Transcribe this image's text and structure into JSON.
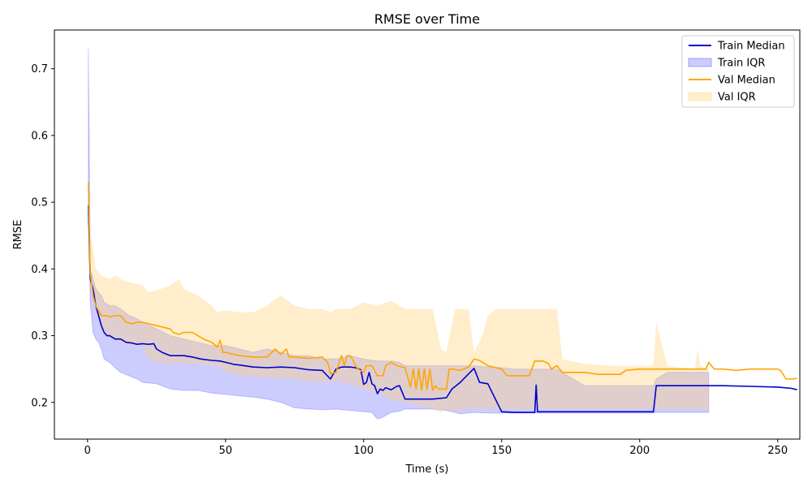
{
  "chart_data": {
    "type": "line",
    "title": "RMSE over Time",
    "xlabel": "Time (s)",
    "ylabel": "RMSE",
    "xlim": [
      -12,
      258
    ],
    "ylim": [
      0.145,
      0.758
    ],
    "xticks": [
      0,
      50,
      100,
      150,
      200,
      250
    ],
    "yticks": [
      0.2,
      0.3,
      0.4,
      0.5,
      0.6,
      0.7
    ],
    "grid": false,
    "legend_position": "top-right",
    "colors": {
      "train_line": "#0000cc",
      "train_fill": "#0000ff",
      "val_line": "#ffa500",
      "val_fill": "#ffd27f"
    },
    "series": [
      {
        "name": "Train Median",
        "kind": "line",
        "x": [
          0.3,
          1,
          2,
          3,
          4,
          5,
          6,
          7,
          8,
          10,
          12,
          14,
          16,
          18,
          20,
          22,
          24,
          25,
          27,
          30,
          33,
          35,
          38,
          41,
          45,
          48,
          50,
          53,
          55,
          60,
          65,
          70,
          75,
          80,
          85,
          88,
          90,
          92,
          95,
          97,
          99,
          100,
          101,
          102,
          103,
          104,
          105,
          106,
          107,
          108,
          110,
          112,
          113,
          115,
          116,
          120,
          125,
          130,
          132,
          135,
          140,
          142,
          145,
          150,
          155,
          160,
          162,
          162.5,
          163,
          165,
          170,
          175,
          180,
          190,
          200,
          205,
          206,
          210,
          220,
          230,
          240,
          250,
          255,
          257
        ],
        "y": [
          0.495,
          0.385,
          0.37,
          0.345,
          0.33,
          0.315,
          0.305,
          0.3,
          0.3,
          0.295,
          0.295,
          0.29,
          0.289,
          0.287,
          0.288,
          0.287,
          0.288,
          0.28,
          0.275,
          0.27,
          0.27,
          0.27,
          0.268,
          0.265,
          0.263,
          0.262,
          0.26,
          0.257,
          0.256,
          0.253,
          0.252,
          0.253,
          0.252,
          0.249,
          0.248,
          0.235,
          0.25,
          0.253,
          0.253,
          0.252,
          0.249,
          0.227,
          0.23,
          0.245,
          0.228,
          0.225,
          0.213,
          0.22,
          0.218,
          0.222,
          0.219,
          0.224,
          0.225,
          0.205,
          0.205,
          0.205,
          0.205,
          0.207,
          0.22,
          0.23,
          0.251,
          0.23,
          0.228,
          0.186,
          0.185,
          0.185,
          0.185,
          0.226,
          0.186,
          0.186,
          0.186,
          0.186,
          0.186,
          0.186,
          0.186,
          0.186,
          0.225,
          0.225,
          0.225,
          0.225,
          0.224,
          0.223,
          0.221,
          0.219
        ]
      },
      {
        "name": "Train IQR",
        "kind": "band",
        "x": [
          0.3,
          1,
          2,
          3,
          4,
          5,
          6,
          8,
          10,
          12,
          15,
          18,
          20,
          25,
          30,
          35,
          40,
          45,
          50,
          55,
          60,
          65,
          70,
          75,
          80,
          85,
          90,
          95,
          100,
          103,
          105,
          107,
          110,
          113,
          115,
          120,
          125,
          130,
          135,
          140,
          145,
          150,
          155,
          160,
          165,
          170,
          180,
          190,
          200,
          205,
          206,
          210,
          220,
          225
        ],
        "low": [
          0.5,
          0.35,
          0.305,
          0.295,
          0.29,
          0.28,
          0.265,
          0.26,
          0.252,
          0.245,
          0.24,
          0.235,
          0.23,
          0.228,
          0.22,
          0.218,
          0.218,
          0.214,
          0.212,
          0.21,
          0.208,
          0.205,
          0.2,
          0.192,
          0.19,
          0.189,
          0.19,
          0.188,
          0.186,
          0.185,
          0.175,
          0.178,
          0.185,
          0.187,
          0.19,
          0.19,
          0.19,
          0.188,
          0.183,
          0.185,
          0.184,
          0.184,
          0.184,
          0.184,
          0.184,
          0.184,
          0.184,
          0.184,
          0.184,
          0.184,
          0.185,
          0.185,
          0.185,
          0.185
        ],
        "high": [
          0.73,
          0.4,
          0.385,
          0.37,
          0.365,
          0.36,
          0.35,
          0.345,
          0.345,
          0.34,
          0.33,
          0.325,
          0.32,
          0.31,
          0.3,
          0.295,
          0.29,
          0.285,
          0.285,
          0.28,
          0.275,
          0.28,
          0.275,
          0.27,
          0.27,
          0.265,
          0.265,
          0.27,
          0.265,
          0.263,
          0.262,
          0.262,
          0.262,
          0.26,
          0.255,
          0.255,
          0.255,
          0.255,
          0.255,
          0.255,
          0.253,
          0.252,
          0.25,
          0.25,
          0.25,
          0.25,
          0.225,
          0.225,
          0.225,
          0.225,
          0.235,
          0.245,
          0.245,
          0.245
        ]
      },
      {
        "name": "Val Median",
        "kind": "line",
        "x": [
          0.3,
          1,
          2,
          3,
          5,
          7,
          8,
          10,
          12,
          14,
          16,
          18,
          20,
          25,
          30,
          31,
          33,
          35,
          38,
          40,
          42,
          45,
          47,
          48,
          49,
          50,
          55,
          60,
          65,
          68,
          70,
          72,
          73,
          75,
          80,
          85,
          87,
          88,
          90,
          92,
          93,
          94,
          95,
          96,
          97,
          98,
          100,
          101,
          102,
          103,
          105,
          107,
          108,
          110,
          112,
          115,
          117,
          118,
          119,
          120,
          121,
          122,
          123,
          124,
          125,
          126,
          127,
          128,
          130,
          131,
          132,
          135,
          138,
          140,
          142,
          145,
          150,
          152,
          155,
          160,
          162,
          165,
          167,
          168,
          170,
          172,
          175,
          180,
          185,
          190,
          193,
          195,
          200,
          205,
          210,
          215,
          220,
          224,
          225,
          227,
          230,
          235,
          240,
          245,
          250,
          251,
          253,
          255,
          257
        ],
        "y": [
          0.53,
          0.395,
          0.36,
          0.345,
          0.33,
          0.33,
          0.328,
          0.33,
          0.33,
          0.32,
          0.318,
          0.32,
          0.32,
          0.315,
          0.31,
          0.305,
          0.302,
          0.305,
          0.305,
          0.3,
          0.295,
          0.29,
          0.283,
          0.293,
          0.275,
          0.275,
          0.27,
          0.268,
          0.268,
          0.28,
          0.272,
          0.28,
          0.268,
          0.268,
          0.266,
          0.268,
          0.26,
          0.243,
          0.245,
          0.27,
          0.255,
          0.27,
          0.27,
          0.265,
          0.255,
          0.25,
          0.245,
          0.255,
          0.255,
          0.255,
          0.24,
          0.24,
          0.255,
          0.26,
          0.255,
          0.252,
          0.223,
          0.25,
          0.22,
          0.25,
          0.218,
          0.25,
          0.22,
          0.25,
          0.218,
          0.225,
          0.22,
          0.22,
          0.22,
          0.25,
          0.25,
          0.248,
          0.253,
          0.265,
          0.263,
          0.255,
          0.25,
          0.24,
          0.24,
          0.24,
          0.262,
          0.262,
          0.258,
          0.25,
          0.255,
          0.245,
          0.245,
          0.245,
          0.242,
          0.242,
          0.242,
          0.248,
          0.25,
          0.25,
          0.25,
          0.25,
          0.25,
          0.25,
          0.26,
          0.25,
          0.25,
          0.248,
          0.25,
          0.25,
          0.25,
          0.248,
          0.235,
          0.235,
          0.236
        ]
      },
      {
        "name": "Val IQR",
        "kind": "band",
        "x": [
          0.3,
          1,
          2,
          3,
          5,
          8,
          10,
          12,
          15,
          20,
          22,
          25,
          30,
          33,
          35,
          40,
          45,
          47,
          50,
          55,
          60,
          65,
          70,
          75,
          80,
          85,
          88,
          90,
          95,
          100,
          105,
          110,
          115,
          120,
          125,
          128,
          130,
          133,
          135,
          138,
          140,
          143,
          145,
          148,
          150,
          155,
          160,
          165,
          170,
          172,
          175,
          180,
          190,
          200,
          205,
          206,
          210,
          220,
          221,
          222,
          225
        ],
        "low": [
          0.535,
          0.43,
          0.37,
          0.34,
          0.31,
          0.3,
          0.295,
          0.29,
          0.285,
          0.285,
          0.265,
          0.26,
          0.258,
          0.26,
          0.258,
          0.258,
          0.255,
          0.255,
          0.245,
          0.24,
          0.238,
          0.238,
          0.235,
          0.235,
          0.232,
          0.23,
          0.232,
          0.232,
          0.228,
          0.22,
          0.215,
          0.205,
          0.2,
          0.195,
          0.19,
          0.185,
          0.19,
          0.185,
          0.19,
          0.19,
          0.19,
          0.19,
          0.19,
          0.19,
          0.19,
          0.19,
          0.19,
          0.19,
          0.19,
          0.19,
          0.19,
          0.19,
          0.19,
          0.19,
          0.19,
          0.19,
          0.19,
          0.19,
          0.19,
          0.19,
          0.19
        ],
        "high": [
          0.56,
          0.45,
          0.43,
          0.4,
          0.39,
          0.385,
          0.39,
          0.385,
          0.38,
          0.375,
          0.365,
          0.368,
          0.375,
          0.385,
          0.37,
          0.36,
          0.345,
          0.335,
          0.338,
          0.335,
          0.335,
          0.345,
          0.36,
          0.345,
          0.34,
          0.34,
          0.335,
          0.34,
          0.34,
          0.35,
          0.345,
          0.352,
          0.34,
          0.34,
          0.34,
          0.28,
          0.275,
          0.34,
          0.34,
          0.34,
          0.275,
          0.3,
          0.33,
          0.34,
          0.34,
          0.34,
          0.34,
          0.34,
          0.34,
          0.265,
          0.262,
          0.258,
          0.255,
          0.255,
          0.255,
          0.32,
          0.255,
          0.25,
          0.28,
          0.255,
          0.25
        ]
      }
    ]
  }
}
